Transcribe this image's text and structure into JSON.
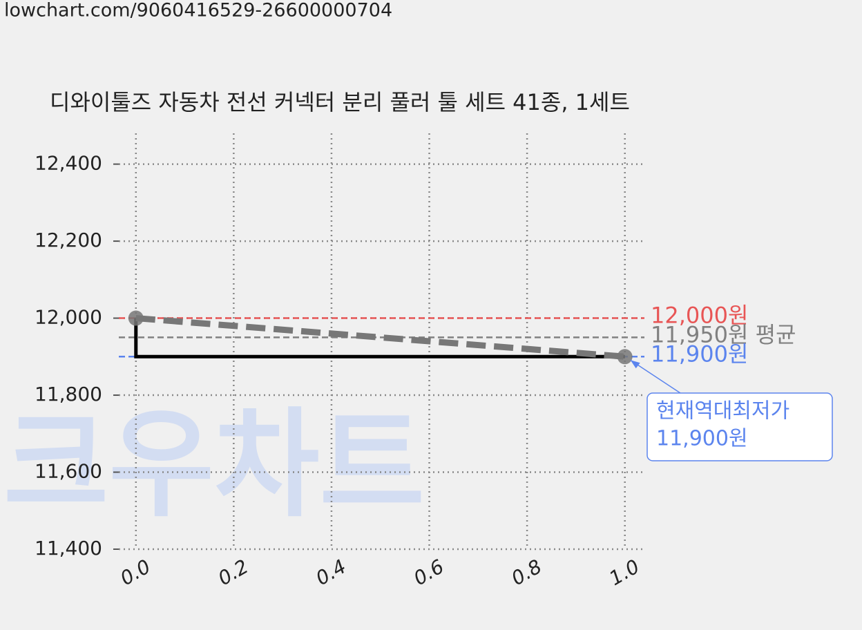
{
  "url": "lowchart.com/9060416529-26600000704",
  "watermark": "크우차트",
  "chart_data": {
    "type": "line",
    "title": "디와이툴즈 자동차 전선 커넥터 분리 풀러 툴 세트 41종, 1세트",
    "x": [
      0,
      1
    ],
    "series": [
      {
        "color": "#000000",
        "values": [
          12000,
          11900
        ],
        "step": "pre",
        "dashed": false
      },
      {
        "color": "#777777",
        "values": [
          12000,
          11900
        ],
        "step": "none",
        "dashed": true,
        "markers": true
      }
    ],
    "hlines": [
      {
        "value": 12000,
        "label": "12,000원",
        "color": "#e85555"
      },
      {
        "value": 11950,
        "label": "11,950원 평균",
        "color": "#808080"
      },
      {
        "value": 11900,
        "label": "11,900원",
        "color": "#5b84ee"
      }
    ],
    "annotation": {
      "lines": [
        "현재역대최저가",
        "11,900원"
      ],
      "x": 1,
      "y": 11900,
      "color": "#5b84ee"
    },
    "xlim": [
      -0.035,
      1.04
    ],
    "ylim": [
      11400,
      12480
    ],
    "xticks": [
      {
        "value": 0,
        "label": "0.0"
      },
      0.2,
      0.4,
      0.6,
      0.8,
      {
        "value": 1,
        "label": "1.0"
      }
    ],
    "yticks": [
      {
        "value": 11400,
        "label": "11,400"
      },
      {
        "value": 11600,
        "label": "11,600"
      },
      {
        "value": 11800,
        "label": "11,800"
      },
      {
        "value": 12000,
        "label": "12,000"
      },
      {
        "value": 12200,
        "label": "12,200"
      },
      {
        "value": 12400,
        "label": "12,400"
      }
    ],
    "grid": true
  }
}
